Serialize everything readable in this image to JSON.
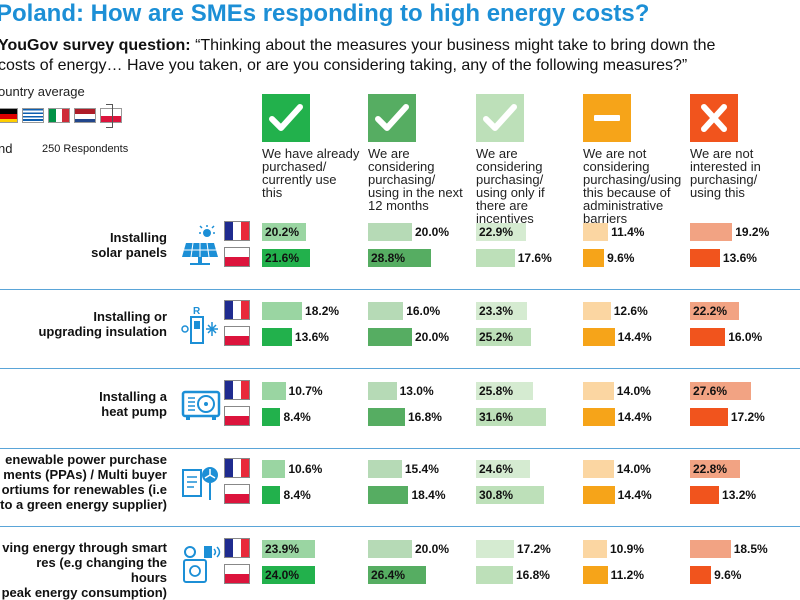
{
  "title": "Poland: How are SMEs responding to high energy costs?",
  "question": {
    "label": "YouGov survey question:",
    "line1": "“Thinking about the measures your business might take to bring down the",
    "line2": "costs of energy… Have you taken, or are you considering taking, any of the following measures?”"
  },
  "legend": {
    "average_label": "ountry average",
    "respondents_label_1": "nd",
    "respondents_label_2": "250 Respondents"
  },
  "colors": {
    "title": "#1c8fd6",
    "separator": "#5aa5d8",
    "france_blue": "#1f2b8f",
    "france_red": "#e8293a",
    "poland_red": "#dc143c"
  },
  "chart_data": {
    "type": "bar",
    "columns": [
      {
        "key": "c1",
        "icon": "check-icon",
        "label": [
          "We have already",
          "purchased/",
          "currently use",
          "this"
        ],
        "avg_color": "#9ad5a2",
        "pl_color": "#22b14c",
        "scale_max": 40
      },
      {
        "key": "c2",
        "icon": "check-icon",
        "label": [
          "We are",
          "considering",
          "purchasing/",
          "using in the next",
          "12 months"
        ],
        "avg_color": "#b6dab6",
        "pl_color": "#56ad62",
        "scale_max": 40
      },
      {
        "key": "c3",
        "icon": "check-icon",
        "label": [
          "We are",
          "considering",
          "purchasing/",
          "using only if",
          "there are",
          "incentives"
        ],
        "avg_color": "#d5ebd1",
        "pl_color": "#bde0b9",
        "scale_max": 40
      },
      {
        "key": "c4",
        "icon": "minus-icon",
        "label": [
          "We are not",
          "considering",
          "purchasing/using",
          "this because of",
          "administrative",
          "barriers"
        ],
        "avg_color": "#fbd6a2",
        "pl_color": "#f6a419",
        "scale_max": 40
      },
      {
        "key": "c5",
        "icon": "cross-icon",
        "label": [
          "We are not",
          "interested in",
          "purchasing/",
          "using this"
        ],
        "avg_color": "#f2a383",
        "pl_color": "#f1541d",
        "scale_max": 40
      }
    ],
    "series": [
      {
        "name": "Country average",
        "flag": "eu-flag"
      },
      {
        "name": "Poland",
        "flag": "poland-flag"
      }
    ],
    "rows": [
      {
        "label": [
          "Installing",
          "solar panels"
        ],
        "icon": "solar-panel-icon",
        "average": [
          20.2,
          20.0,
          22.9,
          11.4,
          19.2
        ],
        "poland": [
          21.6,
          28.8,
          17.6,
          9.6,
          13.6
        ]
      },
      {
        "label": [
          "Installing or",
          "upgrading insulation"
        ],
        "icon": "insulation-icon",
        "average": [
          18.2,
          16.0,
          23.3,
          12.6,
          22.2
        ],
        "poland": [
          13.6,
          20.0,
          25.2,
          14.4,
          16.0
        ]
      },
      {
        "label": [
          "Installing a",
          "heat pump"
        ],
        "icon": "heat-pump-icon",
        "average": [
          10.7,
          13.0,
          25.8,
          14.0,
          27.6
        ],
        "poland": [
          8.4,
          16.8,
          31.6,
          14.4,
          17.2
        ]
      },
      {
        "label": [
          "enewable power purchase",
          "ments (PPAs) / Multi buyer",
          "ortiums for renewables (i.e",
          "to a green energy supplier)"
        ],
        "icon": "renewable-contract-icon",
        "average": [
          10.6,
          15.4,
          24.6,
          14.0,
          22.8
        ],
        "poland": [
          8.4,
          18.4,
          30.8,
          14.4,
          13.2
        ]
      },
      {
        "label": [
          "ving energy through smart",
          "res (e.g changing the hours",
          "peak energy consumption)"
        ],
        "icon": "smart-meter-icon",
        "average": [
          23.9,
          20.0,
          17.2,
          10.9,
          18.5
        ],
        "poland": [
          24.0,
          26.4,
          16.8,
          11.2,
          9.6
        ]
      }
    ]
  }
}
